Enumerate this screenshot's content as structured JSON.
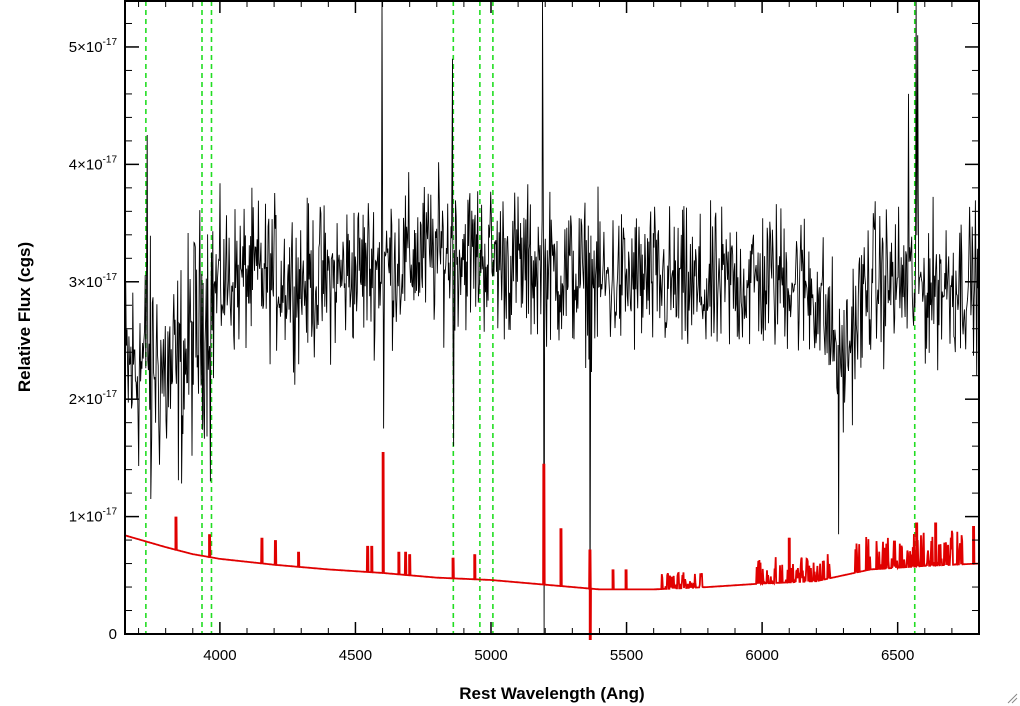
{
  "chart_data": {
    "type": "line",
    "title": "",
    "xlabel": "Rest Wavelength (Ang)",
    "ylabel": "Relative Flux (cgs)",
    "xlim": [
      3650,
      6800
    ],
    "ylim": [
      0,
      5.4e-17
    ],
    "x_ticks": [
      4000,
      4500,
      5000,
      5500,
      6000,
      6500
    ],
    "y_ticks": [
      {
        "value": 0,
        "mantissa": "0",
        "exp": ""
      },
      {
        "value": 1e-17,
        "mantissa": "1×10",
        "exp": "-17"
      },
      {
        "value": 2e-17,
        "mantissa": "2×10",
        "exp": "-17"
      },
      {
        "value": 3e-17,
        "mantissa": "3×10",
        "exp": "-17"
      },
      {
        "value": 4e-17,
        "mantissa": "4×10",
        "exp": "-17"
      },
      {
        "value": 5e-17,
        "mantissa": "5×10",
        "exp": "-17"
      }
    ],
    "grid": false,
    "legend": "none",
    "line_markers_x": [
      3727,
      3934,
      3969,
      4861,
      4959,
      5007,
      6563
    ],
    "series": [
      {
        "color": "#000000",
        "continuum_x": [
          3650,
          3700,
          3750,
          3800,
          3850,
          3900,
          3950,
          4000,
          4100,
          4200,
          4300,
          4400,
          4500,
          4600,
          4700,
          4800,
          4900,
          5000,
          5100,
          5200,
          5300,
          5400,
          5500,
          5600,
          5700,
          5800,
          5900,
          6000,
          6100,
          6200,
          6250,
          6300,
          6350,
          6400,
          6500,
          6600,
          6700,
          6800
        ],
        "continuum_y": [
          2.2e-17,
          2.3e-17,
          2.35e-17,
          2.2e-17,
          2.2e-17,
          2.5e-17,
          2.75e-17,
          3e-17,
          3.05e-17,
          3.05e-17,
          3e-17,
          3e-17,
          3.1e-17,
          3.15e-17,
          3.2e-17,
          3.25e-17,
          3.25e-17,
          3.2e-17,
          3.15e-17,
          3.1e-17,
          3.05e-17,
          3e-17,
          3e-17,
          3e-17,
          2.95e-17,
          2.9e-17,
          3e-17,
          3e-17,
          3.05e-17,
          2.9e-17,
          2.6e-17,
          2.3e-17,
          2.7e-17,
          3e-17,
          3e-17,
          2.95e-17,
          3e-17,
          3e-17
        ],
        "noise": 5e-18,
        "spikes": [
          {
            "x": 3732,
            "y": 4.25e-17
          },
          {
            "x": 3745,
            "y": 1.15e-17
          },
          {
            "x": 3965,
            "y": 1.3e-17
          },
          {
            "x": 4598,
            "y": 5.6e-17
          },
          {
            "x": 4604,
            "y": 1.75e-17
          },
          {
            "x": 4858,
            "y": 4.9e-17
          },
          {
            "x": 4862,
            "y": 1.6e-17
          },
          {
            "x": 5190,
            "y": 5.6e-17
          },
          {
            "x": 5196,
            "y": 0.0
          },
          {
            "x": 5365,
            "y": 0.0
          },
          {
            "x": 6282,
            "y": 8.5e-18
          },
          {
            "x": 6540,
            "y": 4.6e-17
          },
          {
            "x": 6568,
            "y": 5.6e-17
          },
          {
            "x": 6574,
            "y": 5.1e-17
          }
        ]
      },
      {
        "color": "#e00000",
        "continuum_x": [
          3650,
          3800,
          3900,
          4000,
          4200,
          4400,
          4600,
          4800,
          5000,
          5200,
          5400,
          5600,
          5800,
          6000,
          6200,
          6400,
          6600,
          6800
        ],
        "continuum_y": [
          8.4e-18,
          7.4e-18,
          6.8e-18,
          6.4e-18,
          5.9e-18,
          5.5e-18,
          5.2e-18,
          4.8e-18,
          4.6e-18,
          4.2e-18,
          3.8e-18,
          3.8e-18,
          4e-18,
          4.3e-18,
          4.5e-18,
          5.5e-18,
          5.8e-18,
          6e-18
        ],
        "spikes": [
          {
            "x": 3838,
            "y": 1e-17
          },
          {
            "x": 3962,
            "y": 8.5e-18
          },
          {
            "x": 4155,
            "y": 8.2e-18
          },
          {
            "x": 4205,
            "y": 8e-18
          },
          {
            "x": 4290,
            "y": 7e-18
          },
          {
            "x": 4545,
            "y": 7.5e-18
          },
          {
            "x": 4560,
            "y": 7.5e-18
          },
          {
            "x": 4602,
            "y": 1.55e-17
          },
          {
            "x": 4660,
            "y": 7e-18
          },
          {
            "x": 4685,
            "y": 7e-18
          },
          {
            "x": 4700,
            "y": 6.8e-18
          },
          {
            "x": 4860,
            "y": 6.5e-18
          },
          {
            "x": 4940,
            "y": 6.8e-18
          },
          {
            "x": 5195,
            "y": 1.45e-17
          },
          {
            "x": 5258,
            "y": 9e-18
          },
          {
            "x": 5365,
            "y": 7.2e-18
          },
          {
            "x": 5366,
            "y": -3e-18
          },
          {
            "x": 5450,
            "y": 5.5e-18
          },
          {
            "x": 5498,
            "y": 5.5e-18
          },
          {
            "x": 6100,
            "y": 8.2e-18
          },
          {
            "x": 6570,
            "y": 9.5e-18
          },
          {
            "x": 6640,
            "y": 9.5e-18
          },
          {
            "x": 6780,
            "y": 9.2e-18
          }
        ],
        "noisy_ranges": [
          [
            5630,
            5780,
            1.4e-18
          ],
          [
            5975,
            6250,
            2.2e-18
          ],
          [
            6330,
            6740,
            3e-18
          ]
        ]
      }
    ]
  }
}
